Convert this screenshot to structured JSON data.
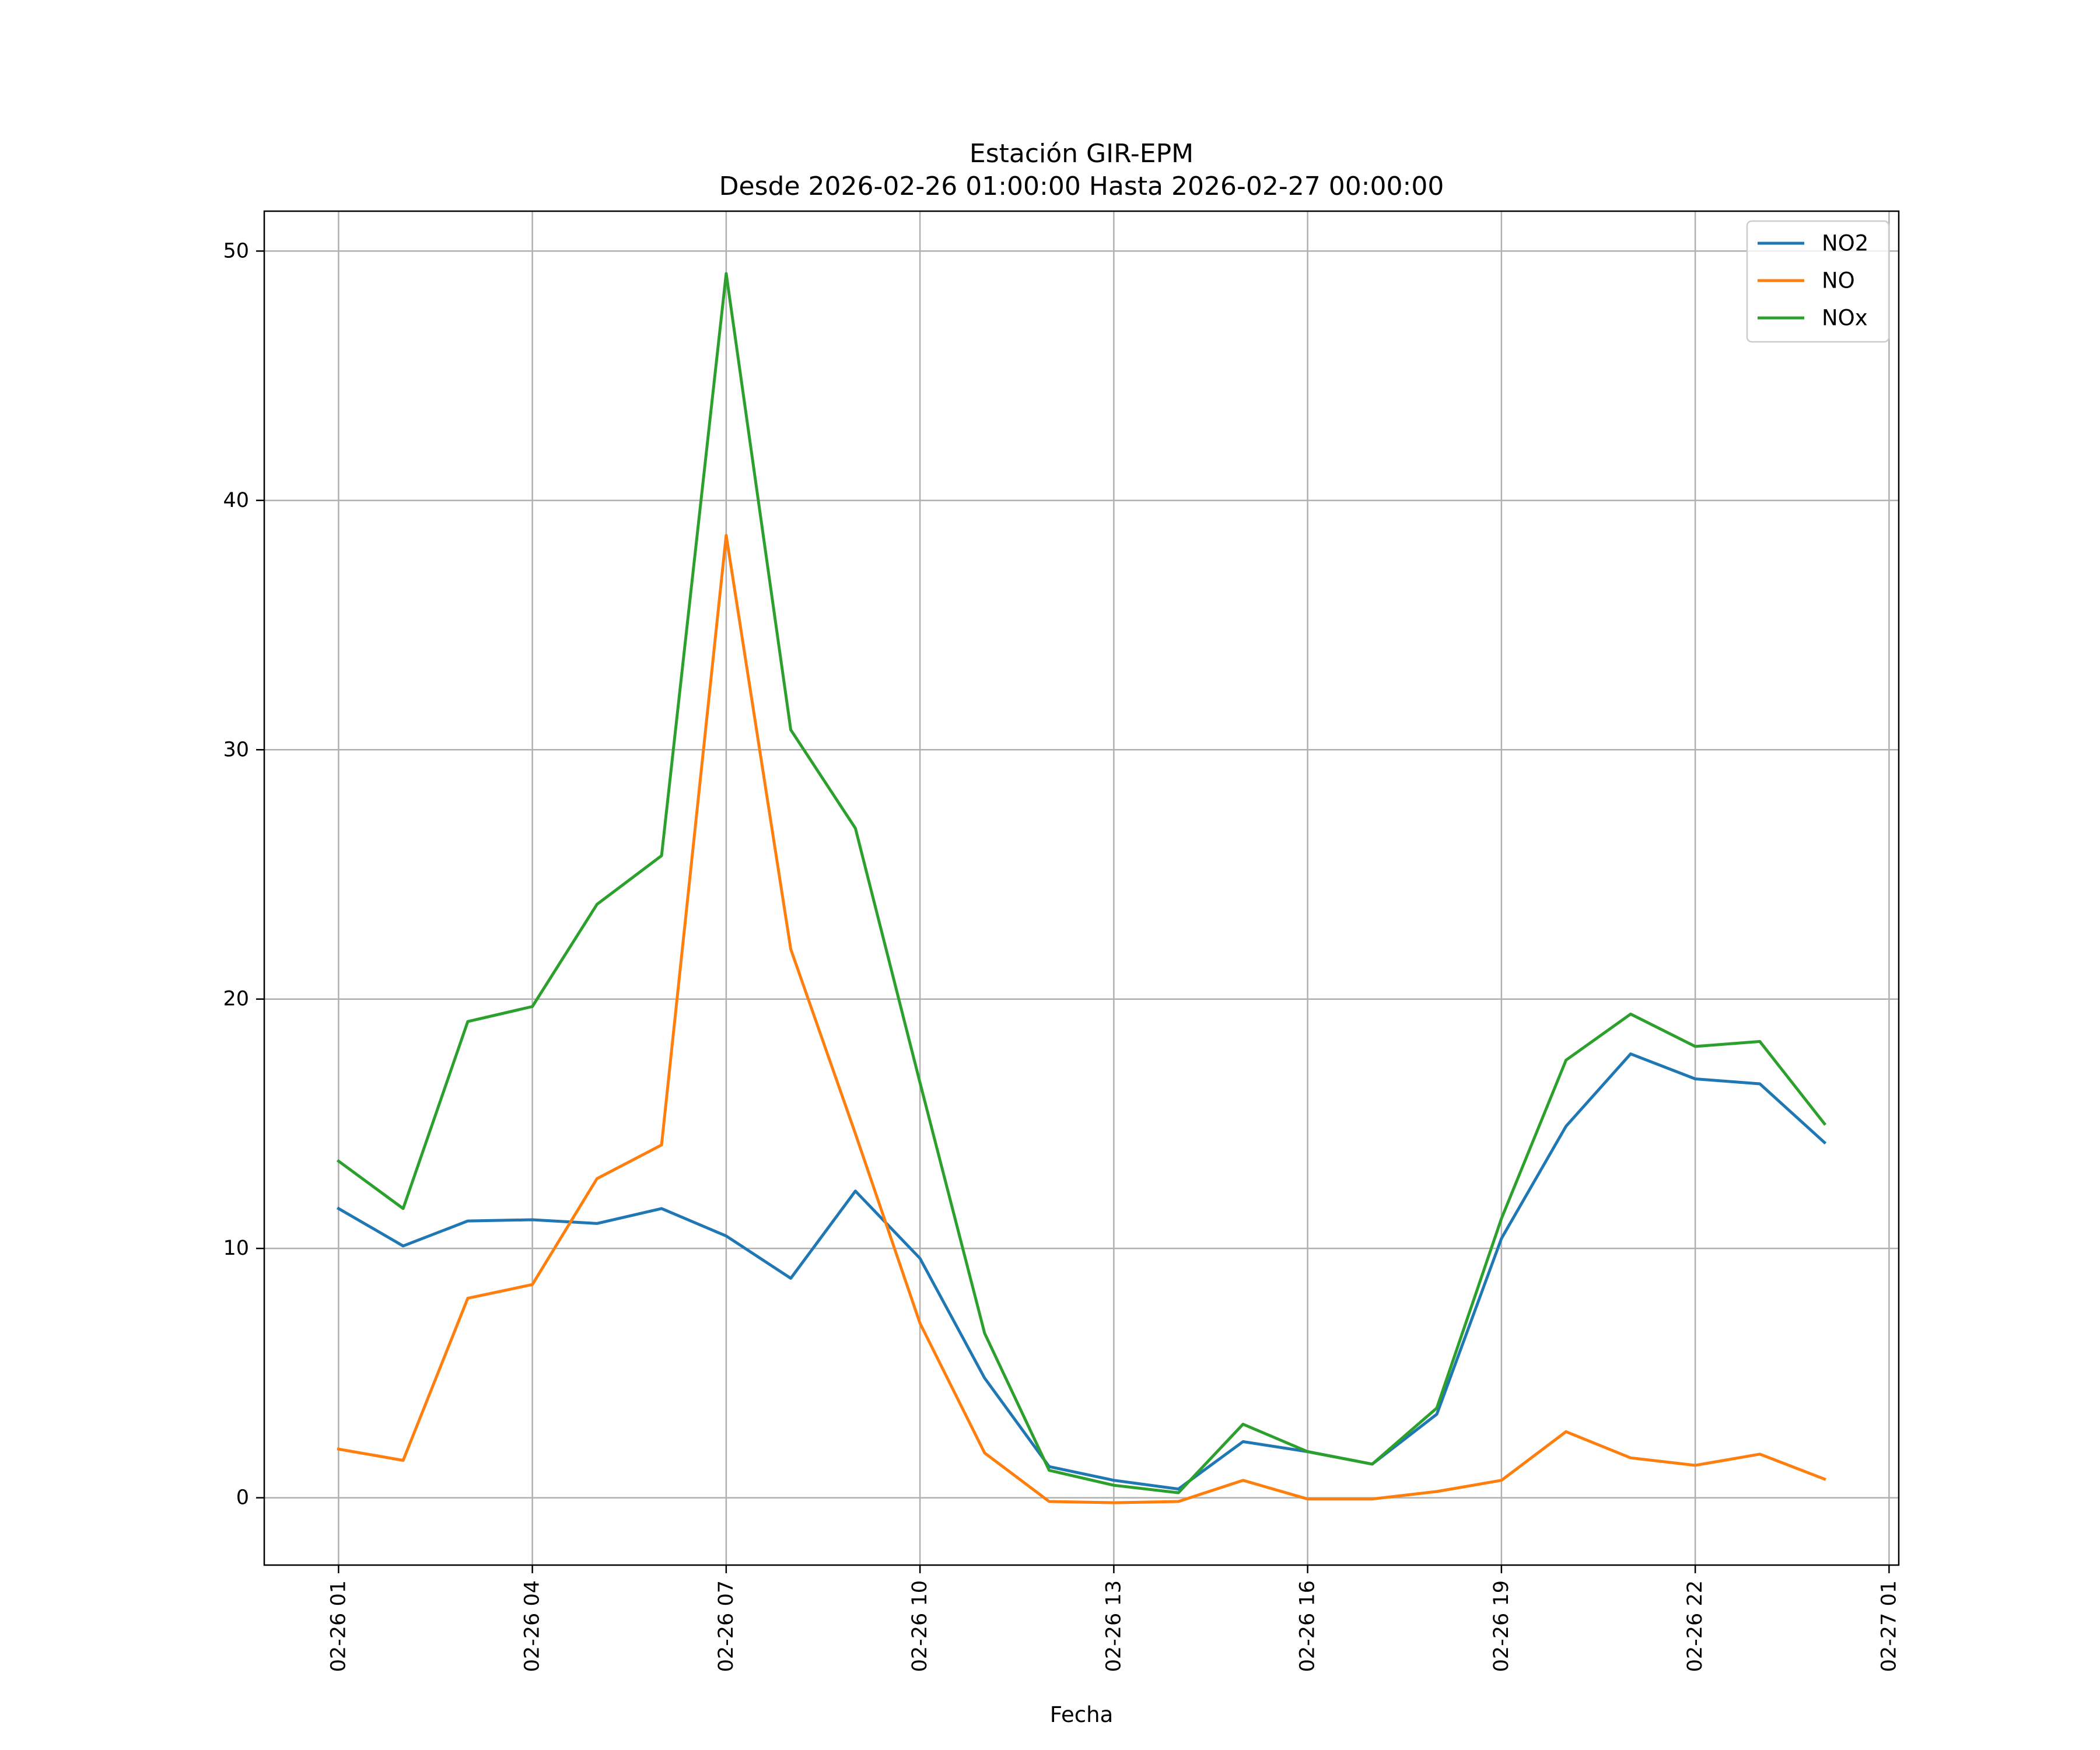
{
  "chart_data": {
    "type": "line",
    "title": "Estación GIR-EPM",
    "subtitle": "Desde 2026-02-26 01:00:00 Hasta 2026-02-27 00:00:00",
    "xlabel": "Fecha",
    "ylabel": "",
    "x": [
      "02-26 01:00",
      "02-26 02:00",
      "02-26 03:00",
      "02-26 04:00",
      "02-26 05:00",
      "02-26 06:00",
      "02-26 07:00",
      "02-26 08:00",
      "02-26 09:00",
      "02-26 10:00",
      "02-26 11:00",
      "02-26 12:00",
      "02-26 13:00",
      "02-26 14:00",
      "02-26 15:00",
      "02-26 16:00",
      "02-26 17:00",
      "02-26 18:00",
      "02-26 19:00",
      "02-26 20:00",
      "02-26 21:00",
      "02-26 22:00",
      "02-26 23:00",
      "02-27 00:00"
    ],
    "x_tick_labels": [
      "02-26 01",
      "02-26 04",
      "02-26 07",
      "02-26 10",
      "02-26 13",
      "02-26 16",
      "02-26 19",
      "02-26 22",
      "02-27 01"
    ],
    "x_tick_hours": [
      0,
      3,
      6,
      9,
      12,
      15,
      18,
      21,
      24
    ],
    "xlim_hours": [
      -1.15,
      24.15
    ],
    "ylim": [
      -2.7,
      51.6
    ],
    "y_ticks": [
      0,
      10,
      20,
      30,
      40,
      50
    ],
    "grid": true,
    "legend_position": "top-right",
    "series": [
      {
        "name": "NO2",
        "color": "#1f77b4",
        "values": [
          11.6,
          10.1,
          11.1,
          11.15,
          11.0,
          11.6,
          10.5,
          8.8,
          12.3,
          9.6,
          4.8,
          1.25,
          0.7,
          0.35,
          2.25,
          1.85,
          1.35,
          3.35,
          10.4,
          14.9,
          17.8,
          16.8,
          16.6,
          14.25
        ]
      },
      {
        "name": "NO",
        "color": "#ff7f0e",
        "values": [
          1.95,
          1.5,
          8.0,
          8.55,
          12.8,
          14.15,
          38.6,
          22.0,
          14.6,
          7.0,
          1.8,
          -0.15,
          -0.2,
          -0.15,
          0.7,
          -0.05,
          -0.05,
          0.25,
          0.7,
          2.65,
          1.6,
          1.3,
          1.75,
          0.75
        ]
      },
      {
        "name": "NOx",
        "color": "#2ca02c",
        "values": [
          13.5,
          11.6,
          19.1,
          19.7,
          23.8,
          25.75,
          49.1,
          30.8,
          26.85,
          16.65,
          6.6,
          1.1,
          0.5,
          0.2,
          2.95,
          1.85,
          1.35,
          3.6,
          11.2,
          17.55,
          19.4,
          18.1,
          18.3,
          15.0
        ]
      }
    ]
  }
}
